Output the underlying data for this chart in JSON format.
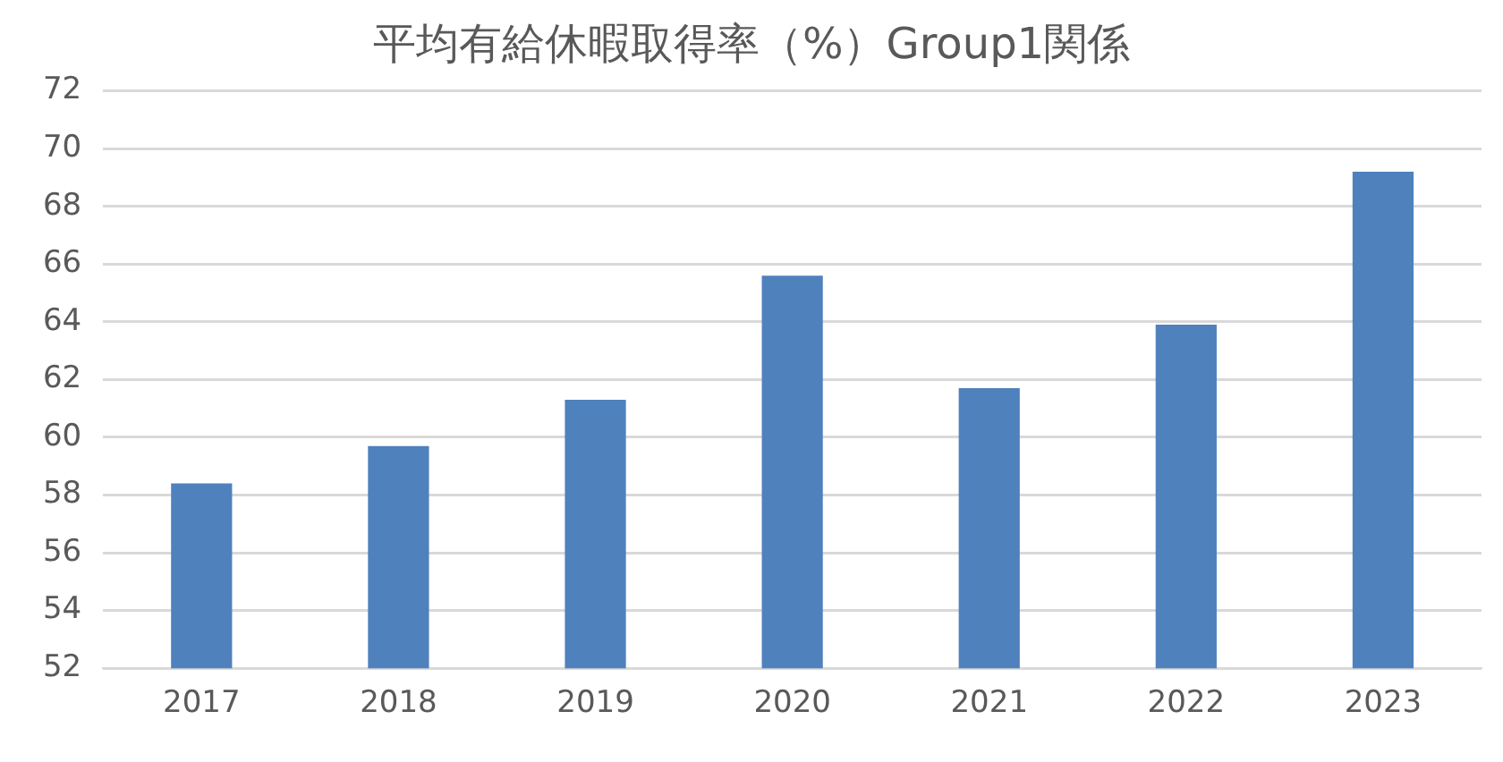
{
  "chart_data": {
    "type": "bar",
    "title": "平均有給休暇取得率（%）Group1関係",
    "categories": [
      "2017",
      "2018",
      "2019",
      "2020",
      "2021",
      "2022",
      "2023"
    ],
    "values": [
      58.4,
      59.7,
      61.3,
      65.6,
      61.7,
      63.9,
      69.2
    ],
    "color": "#4f81bd",
    "ylim": [
      52,
      72
    ],
    "yticks": [
      52,
      54,
      56,
      58,
      60,
      62,
      64,
      66,
      68,
      70,
      72
    ],
    "grid": "y"
  }
}
